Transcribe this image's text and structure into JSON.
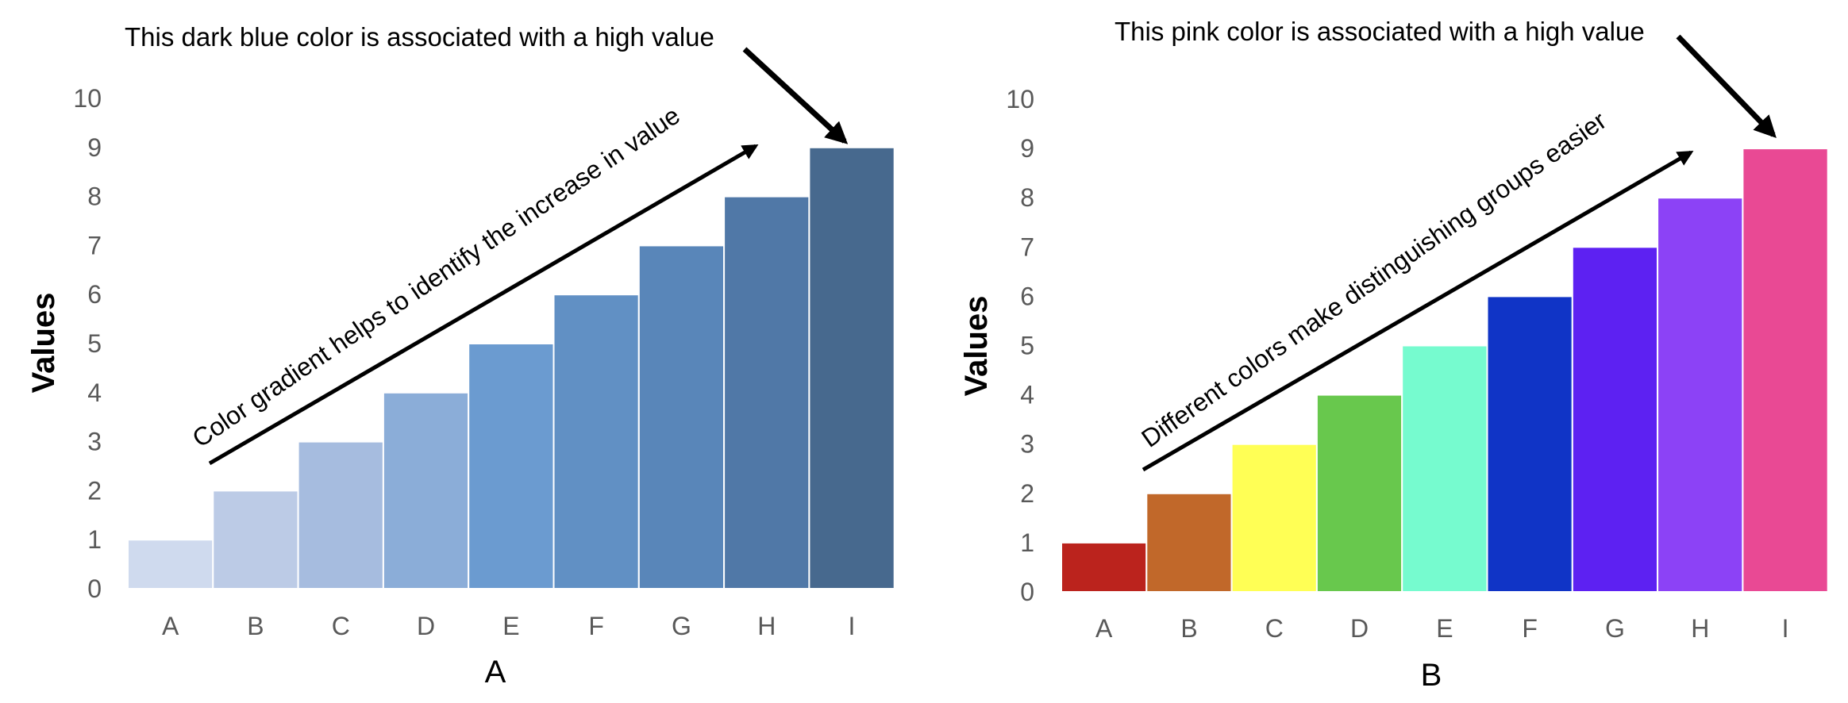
{
  "chart_data": [
    {
      "type": "bar",
      "panel_label": "A",
      "ylabel": "Values",
      "categories": [
        "A",
        "B",
        "C",
        "D",
        "E",
        "F",
        "G",
        "H",
        "I"
      ],
      "values": [
        1,
        2,
        3,
        4,
        5,
        6,
        7,
        8,
        9
      ],
      "colors": [
        "#cfdaee",
        "#bccbe6",
        "#a6bcdf",
        "#8badd8",
        "#6b9bd0",
        "#6190c4",
        "#5986b9",
        "#5078a7",
        "#47698e"
      ],
      "ylim": [
        0,
        10
      ],
      "yticks": [
        0,
        1,
        2,
        3,
        4,
        5,
        6,
        7,
        8,
        9,
        10
      ],
      "grid": false,
      "annotations": [
        "This dark blue color is associated with a high value",
        "Color gradient helps to identify the increase in value"
      ]
    },
    {
      "type": "bar",
      "panel_label": "B",
      "ylabel": "Values",
      "categories": [
        "A",
        "B",
        "C",
        "D",
        "E",
        "F",
        "G",
        "H",
        "I"
      ],
      "values": [
        1,
        2,
        3,
        4,
        5,
        6,
        7,
        8,
        9
      ],
      "colors": [
        "#bb231d",
        "#c1682a",
        "#ffff55",
        "#68c84d",
        "#76fbcf",
        "#1034c6",
        "#5d21f2",
        "#8c42f6",
        "#e94994"
      ],
      "ylim": [
        0,
        10
      ],
      "yticks": [
        0,
        1,
        2,
        3,
        4,
        5,
        6,
        7,
        8,
        9,
        10
      ],
      "grid": false,
      "annotations": [
        "This pink color is associated with a high value",
        "Different colors make distinguishing groups easier"
      ]
    }
  ]
}
